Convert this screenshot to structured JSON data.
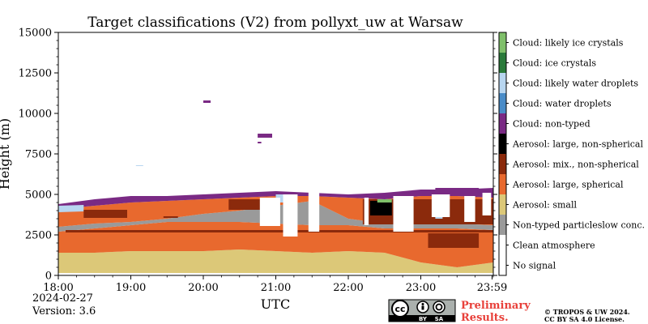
{
  "chart_data": {
    "type": "heatmap",
    "title": "Target classifications (V2) from pollyxt_uw at Warsaw",
    "xlabel": "UTC",
    "ylabel": "Height (m)",
    "x_ticks": [
      "18:00",
      "19:00",
      "20:00",
      "21:00",
      "22:00",
      "23:00",
      "23:59"
    ],
    "y_ticks": [
      "0",
      "2500",
      "5000",
      "7500",
      "10000",
      "12500",
      "15000"
    ],
    "x_range_hours": [
      18.0,
      24.0
    ],
    "ylim": [
      0,
      15000
    ],
    "date": "2024-02-27",
    "version": "Version: 3.6",
    "classes": [
      {
        "label": "Cloud: likely ice crystals",
        "color": "#7fbf6a"
      },
      {
        "label": "Cloud: ice crystals",
        "color": "#2a7a3a"
      },
      {
        "label": "Cloud: likely water droplets",
        "color": "#b8d6f0"
      },
      {
        "label": "Cloud: water droplets",
        "color": "#4a8cc8"
      },
      {
        "label": "Cloud: non-typed",
        "color": "#7a2a84"
      },
      {
        "label": "Aerosol: large, non-spherical",
        "color": "#000000"
      },
      {
        "label": "Aerosol: mix., non-spherical",
        "color": "#8b2a0c"
      },
      {
        "label": "Aerosol: large, spherical",
        "color": "#e8692e"
      },
      {
        "label": "Aerosol: small",
        "color": "#dcc878"
      },
      {
        "label": "Non-typed particleslow conc.",
        "color": "#9a9a9a"
      },
      {
        "label": "Clean atmosphere",
        "color": "#ffffff"
      },
      {
        "label": "No signal",
        "color": "#ffffff"
      }
    ],
    "layers": [
      {
        "class": "Aerosol: small",
        "x_start": 18.0,
        "x_end": 24.0,
        "bottom": [
          150,
          150,
          150,
          150,
          150,
          150,
          150,
          150,
          150,
          150,
          150,
          150,
          150
        ],
        "top": [
          1400,
          1400,
          1500,
          1500,
          1500,
          1600,
          1500,
          1400,
          1500,
          1400,
          800,
          500,
          800
        ]
      },
      {
        "class": "Aerosol: large, spherical",
        "x_start": 18.0,
        "x_end": 24.0,
        "bottom": [
          1400,
          1400,
          1500,
          1500,
          1500,
          1600,
          1500,
          1400,
          1500,
          1400,
          800,
          500,
          800
        ],
        "top": [
          2700,
          2900,
          3100,
          3300,
          3300,
          3300,
          3200,
          3100,
          3100,
          2900,
          2900,
          2900,
          2800
        ]
      },
      {
        "class": "Non-typed particleslow conc.",
        "x_start": 18.0,
        "x_end": 24.0,
        "bottom": [
          2700,
          2900,
          3100,
          3300,
          3300,
          3300,
          3200,
          3100,
          3100,
          2900,
          2900,
          2900,
          2800
        ],
        "top": [
          3000,
          3200,
          3300,
          3500,
          3800,
          4000,
          4300,
          4600,
          3500,
          3200,
          3200,
          3200,
          3100
        ]
      },
      {
        "class": "Aerosol: large, spherical",
        "x_start": 18.0,
        "x_end": 24.0,
        "bottom": [
          3000,
          3200,
          3300,
          3500,
          3800,
          4000,
          4300,
          4600,
          3500,
          3200,
          3200,
          3200,
          3100
        ],
        "top": [
          4100,
          4300,
          4500,
          4600,
          4700,
          4800,
          4900,
          4900,
          4800,
          4700,
          4900,
          4900,
          4800
        ]
      },
      {
        "class": "Cloud: non-typed",
        "x_start": 18.0,
        "x_end": 24.0,
        "bottom": [
          4100,
          4300,
          4500,
          4600,
          4700,
          4800,
          4900,
          4900,
          4800,
          4700,
          4900,
          4900,
          4800
        ],
        "top": [
          4400,
          4700,
          4900,
          4900,
          5000,
          5100,
          5200,
          5100,
          5000,
          5100,
          5300,
          5300,
          5400
        ]
      },
      {
        "class": "Cloud: likely water droplets",
        "x_start": 18.0,
        "x_end": 18.35,
        "bottom": [
          3900,
          3950
        ],
        "top": [
          4300,
          4350
        ]
      }
    ],
    "patches": [
      {
        "class": "Aerosol: mix., non-spherical",
        "x": [
          18.35,
          18.95
        ],
        "y": [
          3550,
          4050
        ]
      },
      {
        "class": "Aerosol: mix., non-spherical",
        "x": [
          19.45,
          19.65
        ],
        "y": [
          3550,
          3650
        ]
      },
      {
        "class": "Aerosol: mix., non-spherical",
        "x": [
          18.1,
          24.0
        ],
        "y": [
          2650,
          2800
        ]
      },
      {
        "class": "Aerosol: mix., non-spherical",
        "x": [
          20.35,
          20.9
        ],
        "y": [
          4050,
          4700
        ]
      },
      {
        "class": "Aerosol: mix., non-spherical",
        "x": [
          22.2,
          24.0
        ],
        "y": [
          3150,
          4700
        ]
      },
      {
        "class": "Aerosol: mix., non-spherical",
        "x": [
          23.1,
          23.8
        ],
        "y": [
          1700,
          2600
        ]
      },
      {
        "class": "Aerosol: large, non-spherical",
        "x": [
          22.3,
          22.6
        ],
        "y": [
          3700,
          4600
        ]
      },
      {
        "class": "Cloud: likely ice crystals",
        "x": [
          22.4,
          22.6
        ],
        "y": [
          4500,
          4700
        ]
      },
      {
        "class": "Cloud: likely water droplets",
        "x": [
          21.0,
          21.1
        ],
        "y": [
          4500,
          5000
        ]
      },
      {
        "class": "Cloud: likely water droplets",
        "x": [
          23.2,
          23.3
        ],
        "y": [
          3500,
          3700
        ]
      },
      {
        "class": "Cloud: non-typed",
        "x": [
          20.0,
          20.1
        ],
        "y": [
          10650,
          10800
        ]
      },
      {
        "class": "Cloud: non-typed",
        "x": [
          20.75,
          20.95
        ],
        "y": [
          8500,
          8750
        ]
      },
      {
        "class": "Cloud: non-typed",
        "x": [
          20.75,
          20.8
        ],
        "y": [
          8150,
          8250
        ]
      },
      {
        "class": "Cloud: likely water droplets",
        "x": [
          19.07,
          19.17
        ],
        "y": [
          6750,
          6800
        ]
      },
      {
        "class": "Cloud: non-typed",
        "x": [
          23.2,
          23.8
        ],
        "y": [
          5000,
          5400
        ]
      }
    ],
    "gaps": [
      {
        "x": [
          20.78,
          21.06
        ],
        "y": [
          3050,
          4800
        ]
      },
      {
        "x": [
          21.1,
          21.3
        ],
        "y": [
          2400,
          5000
        ]
      },
      {
        "x": [
          21.45,
          21.6
        ],
        "y": [
          2700,
          5200
        ]
      },
      {
        "x": [
          22.22,
          22.28
        ],
        "y": [
          3100,
          4800
        ]
      },
      {
        "x": [
          22.62,
          22.9
        ],
        "y": [
          2700,
          4900
        ]
      },
      {
        "x": [
          23.15,
          23.4
        ],
        "y": [
          3600,
          5000
        ]
      },
      {
        "x": [
          23.6,
          23.75
        ],
        "y": [
          3300,
          4900
        ]
      },
      {
        "x": [
          23.85,
          23.97
        ],
        "y": [
          3700,
          5100
        ]
      }
    ]
  },
  "logo": {
    "cc_main": "cc",
    "cc_by": "BY",
    "cc_sa": "SA",
    "prelim_line1": "Preliminary",
    "prelim_line2": "Results.",
    "copyright_line1": "© TROPOS & UW 2024.",
    "copyright_line2": "CC BY SA 4.0 License."
  }
}
